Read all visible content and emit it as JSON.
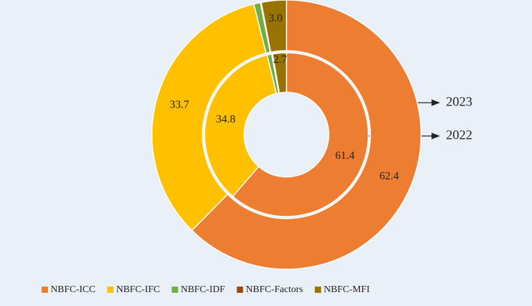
{
  "chart_data": {
    "type": "donut",
    "categories": [
      "NBFC-ICC",
      "NBFC-IFC",
      "NBFC-IDF",
      "NBFC-Factors",
      "NBFC-MFI"
    ],
    "colors": [
      "#ed7d31",
      "#ffc000",
      "#70ad47",
      "#9e480e",
      "#997300"
    ],
    "series": [
      {
        "name": "2023",
        "values": [
          62.4,
          33.7,
          0.8,
          0.1,
          3.0
        ],
        "value_labels": [
          "62.4",
          "33.7",
          null,
          null,
          "3.0"
        ]
      },
      {
        "name": "2022",
        "values": [
          61.4,
          34.8,
          0.9,
          0.2,
          2.7
        ],
        "value_labels": [
          "61.4",
          "34.8",
          null,
          null,
          "2.7"
        ]
      }
    ],
    "legend": "bottom"
  }
}
